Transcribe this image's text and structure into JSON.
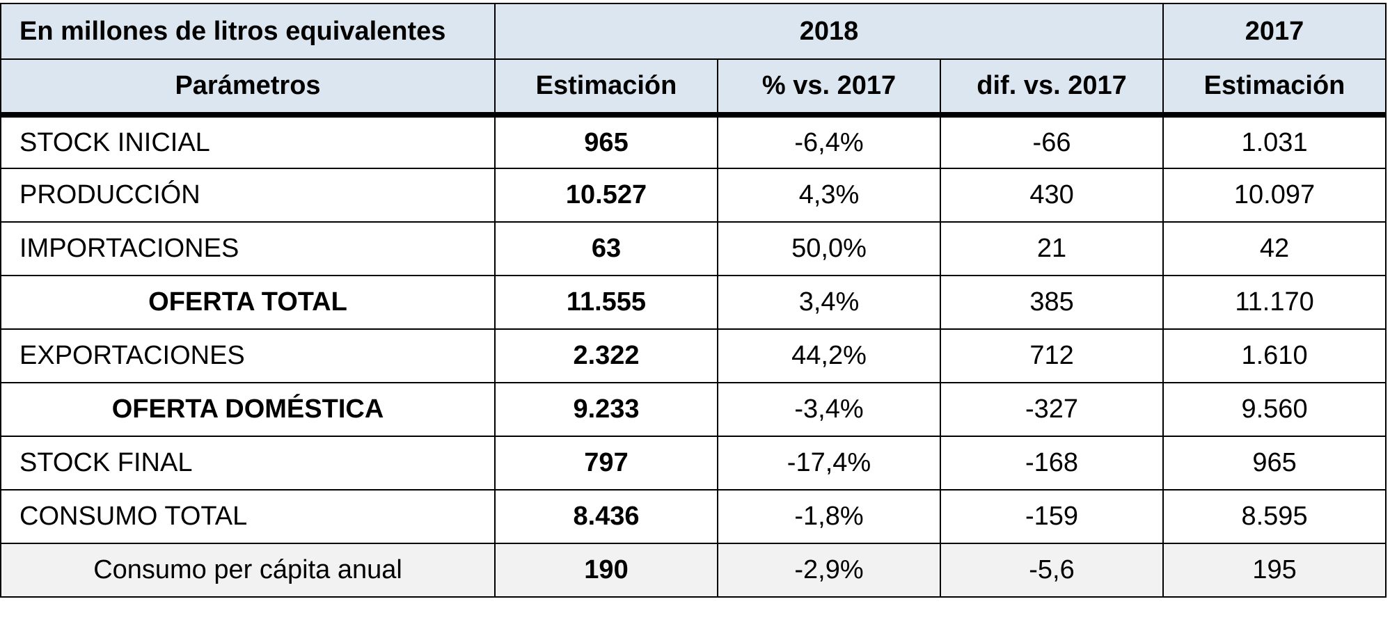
{
  "colors": {
    "header_bg": "#dce6f1",
    "last_row_bg": "#f2f2f2",
    "border": "#000000"
  },
  "chart_data": {
    "type": "table",
    "header": {
      "unit_label": "En millones de litros equivalentes",
      "year_current": "2018",
      "year_previous": "2017",
      "params_label": "Parámetros",
      "col_estimate": "Estimación",
      "col_pct": "% vs. 2017",
      "col_diff": "dif. vs. 2017",
      "col_prev_estimate": "Estimación"
    },
    "rows": [
      {
        "label": "STOCK INICIAL",
        "estimate_2018": "965",
        "pct_vs_2017": "-6,4%",
        "diff_vs_2017": "-66",
        "estimate_2017": "1.031"
      },
      {
        "label": "PRODUCCIÓN",
        "estimate_2018": "10.527",
        "pct_vs_2017": "4,3%",
        "diff_vs_2017": "430",
        "estimate_2017": "10.097"
      },
      {
        "label": "IMPORTACIONES",
        "estimate_2018": "63",
        "pct_vs_2017": "50,0%",
        "diff_vs_2017": "21",
        "estimate_2017": "42"
      },
      {
        "label": "OFERTA TOTAL",
        "estimate_2018": "11.555",
        "pct_vs_2017": "3,4%",
        "diff_vs_2017": "385",
        "estimate_2017": "11.170"
      },
      {
        "label": "EXPORTACIONES",
        "estimate_2018": "2.322",
        "pct_vs_2017": "44,2%",
        "diff_vs_2017": "712",
        "estimate_2017": "1.610"
      },
      {
        "label": "OFERTA DOMÉSTICA",
        "estimate_2018": "9.233",
        "pct_vs_2017": "-3,4%",
        "diff_vs_2017": "-327",
        "estimate_2017": "9.560"
      },
      {
        "label": "STOCK FINAL",
        "estimate_2018": "797",
        "pct_vs_2017": "-17,4%",
        "diff_vs_2017": "-168",
        "estimate_2017": "965"
      },
      {
        "label": "CONSUMO TOTAL",
        "estimate_2018": "8.436",
        "pct_vs_2017": "-1,8%",
        "diff_vs_2017": "-159",
        "estimate_2017": "8.595"
      },
      {
        "label": "Consumo per cápita anual",
        "estimate_2018": "190",
        "pct_vs_2017": "-2,9%",
        "diff_vs_2017": "-5,6",
        "estimate_2017": "195"
      }
    ]
  }
}
